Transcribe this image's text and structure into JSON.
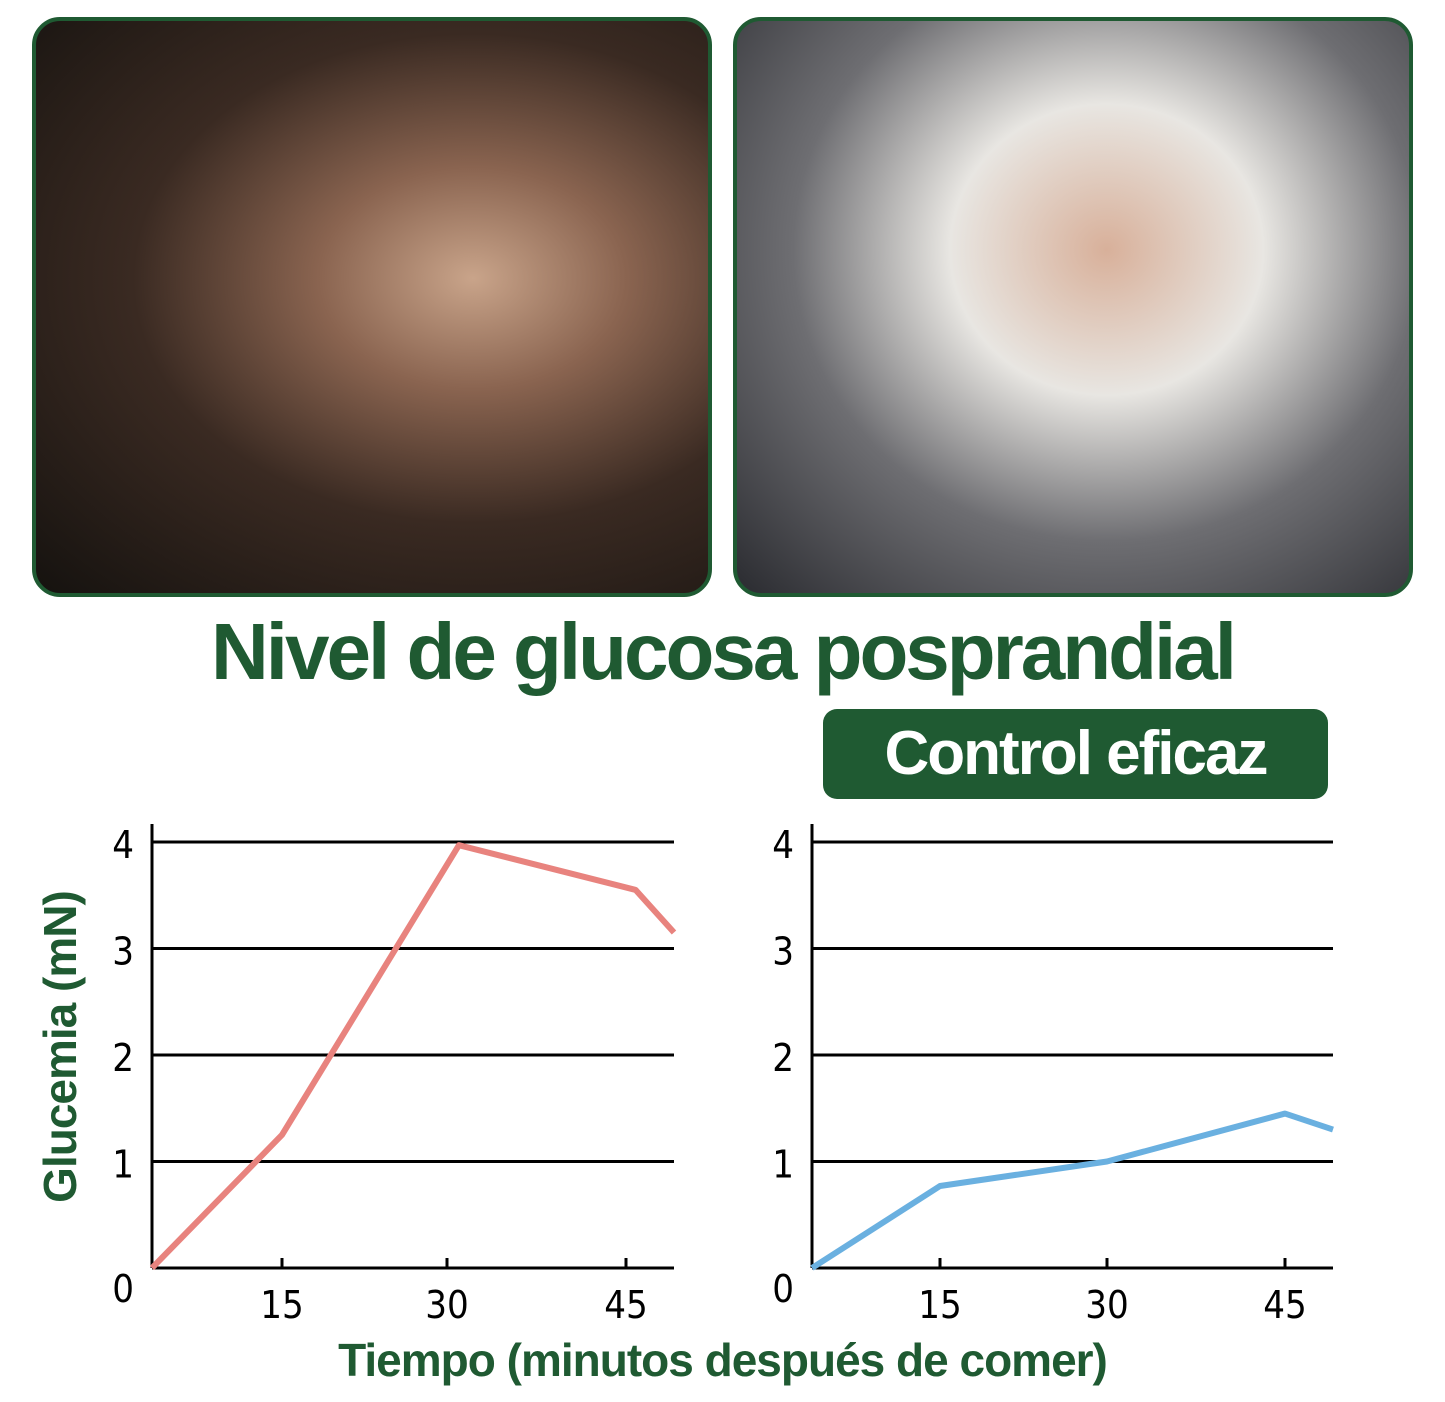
{
  "photos": [
    {
      "description_icon": "photo-man-eating-cake"
    },
    {
      "description_icon": "photo-man-eating-burger"
    }
  ],
  "title": "Nivel de glucosa posprandial",
  "badge": "Control eficaz",
  "chart_data": [
    {
      "type": "line",
      "ylabel": "Glucemia (mN)",
      "xlabel": "Tiempo (minutos después de comer)",
      "yticks": [
        "0",
        "1",
        "2",
        "3",
        "4"
      ],
      "xticks": [
        "15",
        "30",
        "45"
      ],
      "ylim": [
        0,
        4
      ],
      "xlim": [
        0,
        50
      ],
      "grid": true,
      "color": "#e8837e",
      "x": [
        0,
        15,
        31,
        46,
        50
      ],
      "values": [
        0,
        1.25,
        3.97,
        3.55,
        3.15
      ]
    },
    {
      "type": "line",
      "ylabel": "Glucemia (mN)",
      "xlabel": "Tiempo (minutos después de comer)",
      "yticks": [
        "0",
        "1",
        "2",
        "3",
        "4"
      ],
      "xticks": [
        "15",
        "30",
        "45"
      ],
      "ylim": [
        0,
        4
      ],
      "xlim": [
        0,
        50
      ],
      "grid": true,
      "color": "#6ab0e0",
      "x": [
        0,
        15,
        30,
        45,
        50
      ],
      "values": [
        0,
        0.77,
        1.0,
        1.45,
        1.3
      ]
    }
  ]
}
